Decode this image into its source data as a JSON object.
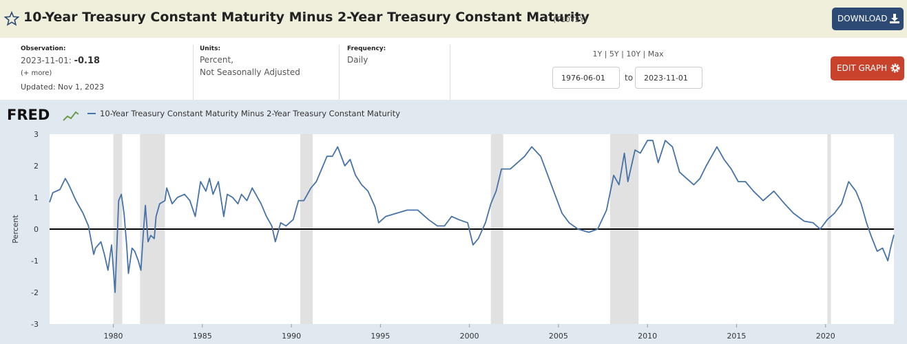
{
  "header": {
    "title": "10-Year Treasury Constant Maturity Minus 2-Year Treasury Constant Maturity",
    "series_id": "(T10Y2Y)",
    "download": "DOWNLOAD"
  },
  "info": {
    "observation_label": "Observation:",
    "observation_date": "2023-11-01:",
    "observation_value": "-0.18",
    "more": "(+ more)",
    "updated": "Updated: Nov 1, 2023",
    "units_label": "Units:",
    "units_1": "Percent,",
    "units_2": "Not Seasonally Adjusted",
    "frequency_label": "Frequency:",
    "frequency": "Daily"
  },
  "controls": {
    "ranges": "1Y | 5Y | 10Y | Max",
    "start": "1976-06-01",
    "to": "to",
    "end": "2023-11-01",
    "edit": "EDIT GRAPH"
  },
  "chart_data": {
    "type": "line",
    "logo": "FRED",
    "ylabel": "Percent",
    "xlim": [
      1976.42,
      2023.84
    ],
    "xticks": [
      1980,
      1985,
      1990,
      1995,
      2000,
      2005,
      2010,
      2015,
      2020
    ],
    "ylim": [
      -3,
      3
    ],
    "yticks": [
      3,
      2,
      1,
      0,
      -1,
      -2,
      -3
    ],
    "recessions": [
      [
        1980.0,
        1980.5
      ],
      [
        1981.5,
        1982.9
      ],
      [
        1990.5,
        1991.2
      ],
      [
        2001.2,
        2001.9
      ],
      [
        2007.9,
        2009.5
      ],
      [
        2020.1,
        2020.3
      ]
    ],
    "x": [
      1976.42,
      1976.6,
      1977.0,
      1977.3,
      1977.5,
      1977.9,
      1978.3,
      1978.6,
      1978.9,
      1979.0,
      1979.3,
      1979.5,
      1979.7,
      1979.9,
      1980.1,
      1980.3,
      1980.45,
      1980.6,
      1980.75,
      1980.85,
      1981.05,
      1981.2,
      1981.4,
      1981.55,
      1981.7,
      1981.8,
      1981.95,
      1982.1,
      1982.3,
      1982.4,
      1982.6,
      1982.9,
      1983.0,
      1983.3,
      1983.6,
      1984.0,
      1984.3,
      1984.6,
      1984.9,
      1985.2,
      1985.4,
      1985.6,
      1985.9,
      1986.2,
      1986.4,
      1986.7,
      1987.0,
      1987.2,
      1987.5,
      1987.8,
      1988.0,
      1988.3,
      1988.6,
      1988.9,
      1989.1,
      1989.4,
      1989.7,
      1990.1,
      1990.4,
      1990.7,
      1991.1,
      1991.4,
      1991.7,
      1992.0,
      1992.3,
      1992.6,
      1993.0,
      1993.3,
      1993.6,
      1993.95,
      1994.3,
      1994.7,
      1994.9,
      1995.3,
      1995.9,
      1996.5,
      1997.1,
      1997.7,
      1998.2,
      1998.6,
      1999.0,
      1999.4,
      1999.9,
      2000.2,
      2000.5,
      2000.9,
      2001.2,
      2001.5,
      2001.8,
      2002.3,
      2002.7,
      2003.1,
      2003.5,
      2004.0,
      2004.4,
      2004.8,
      2005.2,
      2005.6,
      2006.1,
      2006.7,
      2007.2,
      2007.7,
      2008.1,
      2008.4,
      2008.7,
      2008.9,
      2009.3,
      2009.6,
      2010.0,
      2010.3,
      2010.6,
      2011.0,
      2011.4,
      2011.8,
      2012.2,
      2012.6,
      2012.95,
      2013.3,
      2013.9,
      2014.3,
      2014.7,
      2015.1,
      2015.5,
      2015.95,
      2016.5,
      2017.1,
      2017.7,
      2018.2,
      2018.8,
      2019.3,
      2019.7,
      2020.1,
      2020.5,
      2020.9,
      2021.3,
      2021.7,
      2022.0,
      2022.3,
      2022.55,
      2022.9,
      2023.2,
      2023.5,
      2023.65,
      2023.84
    ],
    "series": [
      {
        "name": "10-Year Treasury Constant Maturity Minus 2-Year Treasury Constant Maturity",
        "color": "#4572a7",
        "values": [
          0.85,
          1.15,
          1.25,
          1.6,
          1.4,
          0.9,
          0.5,
          0.1,
          -0.8,
          -0.6,
          -0.4,
          -0.8,
          -1.3,
          -0.5,
          -2.0,
          0.9,
          1.1,
          0.5,
          -0.5,
          -1.4,
          -0.6,
          -0.7,
          -1.0,
          -1.3,
          0.0,
          0.75,
          -0.4,
          -0.2,
          -0.3,
          0.4,
          0.8,
          0.9,
          1.3,
          0.8,
          1.0,
          1.1,
          0.9,
          0.4,
          1.5,
          1.2,
          1.6,
          1.1,
          1.5,
          0.4,
          1.1,
          1.0,
          0.8,
          1.1,
          0.9,
          1.3,
          1.1,
          0.8,
          0.4,
          0.1,
          -0.4,
          0.2,
          0.1,
          0.3,
          0.9,
          0.9,
          1.3,
          1.5,
          1.9,
          2.3,
          2.3,
          2.6,
          2.0,
          2.2,
          1.7,
          1.4,
          1.2,
          0.7,
          0.2,
          0.4,
          0.5,
          0.6,
          0.6,
          0.3,
          0.1,
          0.1,
          0.4,
          0.3,
          0.2,
          -0.5,
          -0.3,
          0.2,
          0.8,
          1.2,
          1.9,
          1.9,
          2.1,
          2.3,
          2.6,
          2.3,
          1.7,
          1.1,
          0.5,
          0.2,
          0.0,
          -0.1,
          0.0,
          0.6,
          1.7,
          1.4,
          2.4,
          1.5,
          2.5,
          2.4,
          2.8,
          2.8,
          2.1,
          2.8,
          2.6,
          1.8,
          1.6,
          1.4,
          1.6,
          2.0,
          2.6,
          2.2,
          1.9,
          1.5,
          1.5,
          1.2,
          0.9,
          1.2,
          0.8,
          0.5,
          0.25,
          0.2,
          0.0,
          0.3,
          0.5,
          0.8,
          1.5,
          1.2,
          0.8,
          0.2,
          -0.2,
          -0.7,
          -0.6,
          -1.0,
          -0.6,
          -0.18
        ]
      }
    ]
  }
}
